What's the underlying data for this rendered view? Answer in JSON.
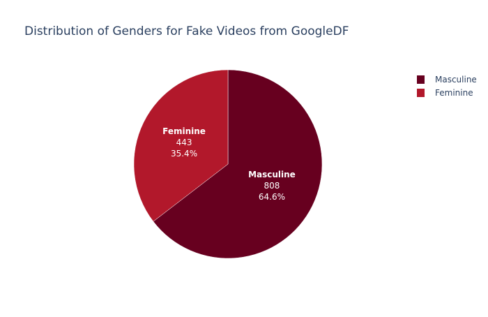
{
  "chart_data": {
    "type": "pie",
    "title": "Distribution of Genders for Fake Videos from GoogleDF",
    "categories": [
      "Masculine",
      "Feminine"
    ],
    "values": [
      808,
      443
    ],
    "percent_labels": [
      "64.6%",
      "35.4%"
    ],
    "colors": [
      "#67001f",
      "#b2182b"
    ],
    "legend_position": "top-right",
    "legend": [
      "Masculine",
      "Feminine"
    ]
  }
}
